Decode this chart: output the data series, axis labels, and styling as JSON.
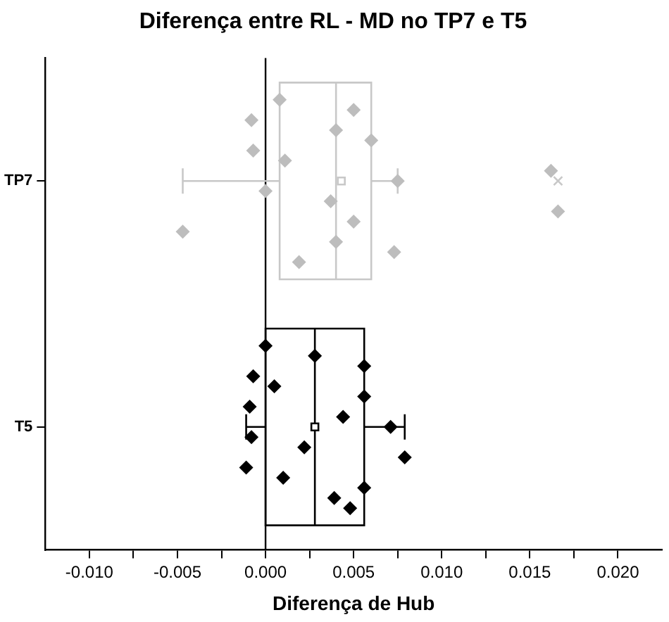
{
  "chart_data": {
    "type": "box",
    "orientation": "horizontal",
    "title": "Diferença entre RL - MD no TP7 e T5",
    "xlabel": "Diferença de Hub",
    "categories": [
      "TP7",
      "T5"
    ],
    "colors": [
      "#c8c8c8",
      "#000000"
    ],
    "boxes": [
      {
        "low": -0.0047,
        "q1": 0.0008,
        "median": 0.004,
        "q3": 0.006,
        "high": 0.0075,
        "mean": 0.0043,
        "outliers": [
          0.0166
        ]
      },
      {
        "low": -0.0011,
        "q1": 0.0,
        "median": 0.0028,
        "q3": 0.0056,
        "high": 0.0079,
        "mean": 0.0028
      }
    ],
    "series": [
      {
        "type": "scatter",
        "color": "#bdbdbd",
        "marker": "diamond",
        "x": [
          "TP7",
          "TP7",
          "TP7",
          "TP7",
          "TP7",
          "TP7",
          "TP7",
          "TP7",
          "TP7",
          "TP7",
          "TP7",
          "TP7",
          "TP7",
          "TP7",
          "TP7",
          "TP7",
          "TP7"
        ],
        "values": [
          0.0008,
          0.005,
          -0.0008,
          0.004,
          0.006,
          -0.0007,
          0.0011,
          0.0162,
          0.0075,
          0.0,
          0.0037,
          0.0166,
          0.005,
          -0.0047,
          0.004,
          0.0073,
          0.0019
        ]
      },
      {
        "type": "scatter",
        "color": "#000000",
        "marker": "diamond",
        "x": [
          "T5",
          "T5",
          "T5",
          "T5",
          "T5",
          "T5",
          "T5",
          "T5",
          "T5",
          "T5",
          "T5",
          "T5",
          "T5",
          "T5",
          "T5",
          "T5",
          "T5"
        ],
        "values": [
          0.0,
          0.0028,
          0.0056,
          -0.0007,
          0.0005,
          0.0056,
          -0.0009,
          0.0044,
          0.0071,
          -0.0008,
          0.0022,
          0.0079,
          -0.0011,
          0.001,
          0.0056,
          0.0039,
          0.0048
        ]
      }
    ],
    "xlim": [
      -0.0125,
      0.0225
    ],
    "xticks": [
      {
        "value": -0.01,
        "label": "-0.010"
      },
      {
        "value": -0.0075,
        "label": null
      },
      {
        "value": -0.005,
        "label": "-0.005"
      },
      {
        "value": -0.0025,
        "label": null
      },
      {
        "value": 0,
        "label": "0.000"
      },
      {
        "value": 0.0025,
        "label": null
      },
      {
        "value": 0.005,
        "label": "0.005"
      },
      {
        "value": 0.0075,
        "label": null
      },
      {
        "value": 0.01,
        "label": "0.010"
      },
      {
        "value": 0.0125,
        "label": null
      },
      {
        "value": 0.015,
        "label": "0.015"
      },
      {
        "value": 0.0175,
        "label": null
      },
      {
        "value": 0.02,
        "label": "0.020"
      }
    ],
    "ref_lines": [
      {
        "axis": "x",
        "value": 0
      }
    ]
  }
}
